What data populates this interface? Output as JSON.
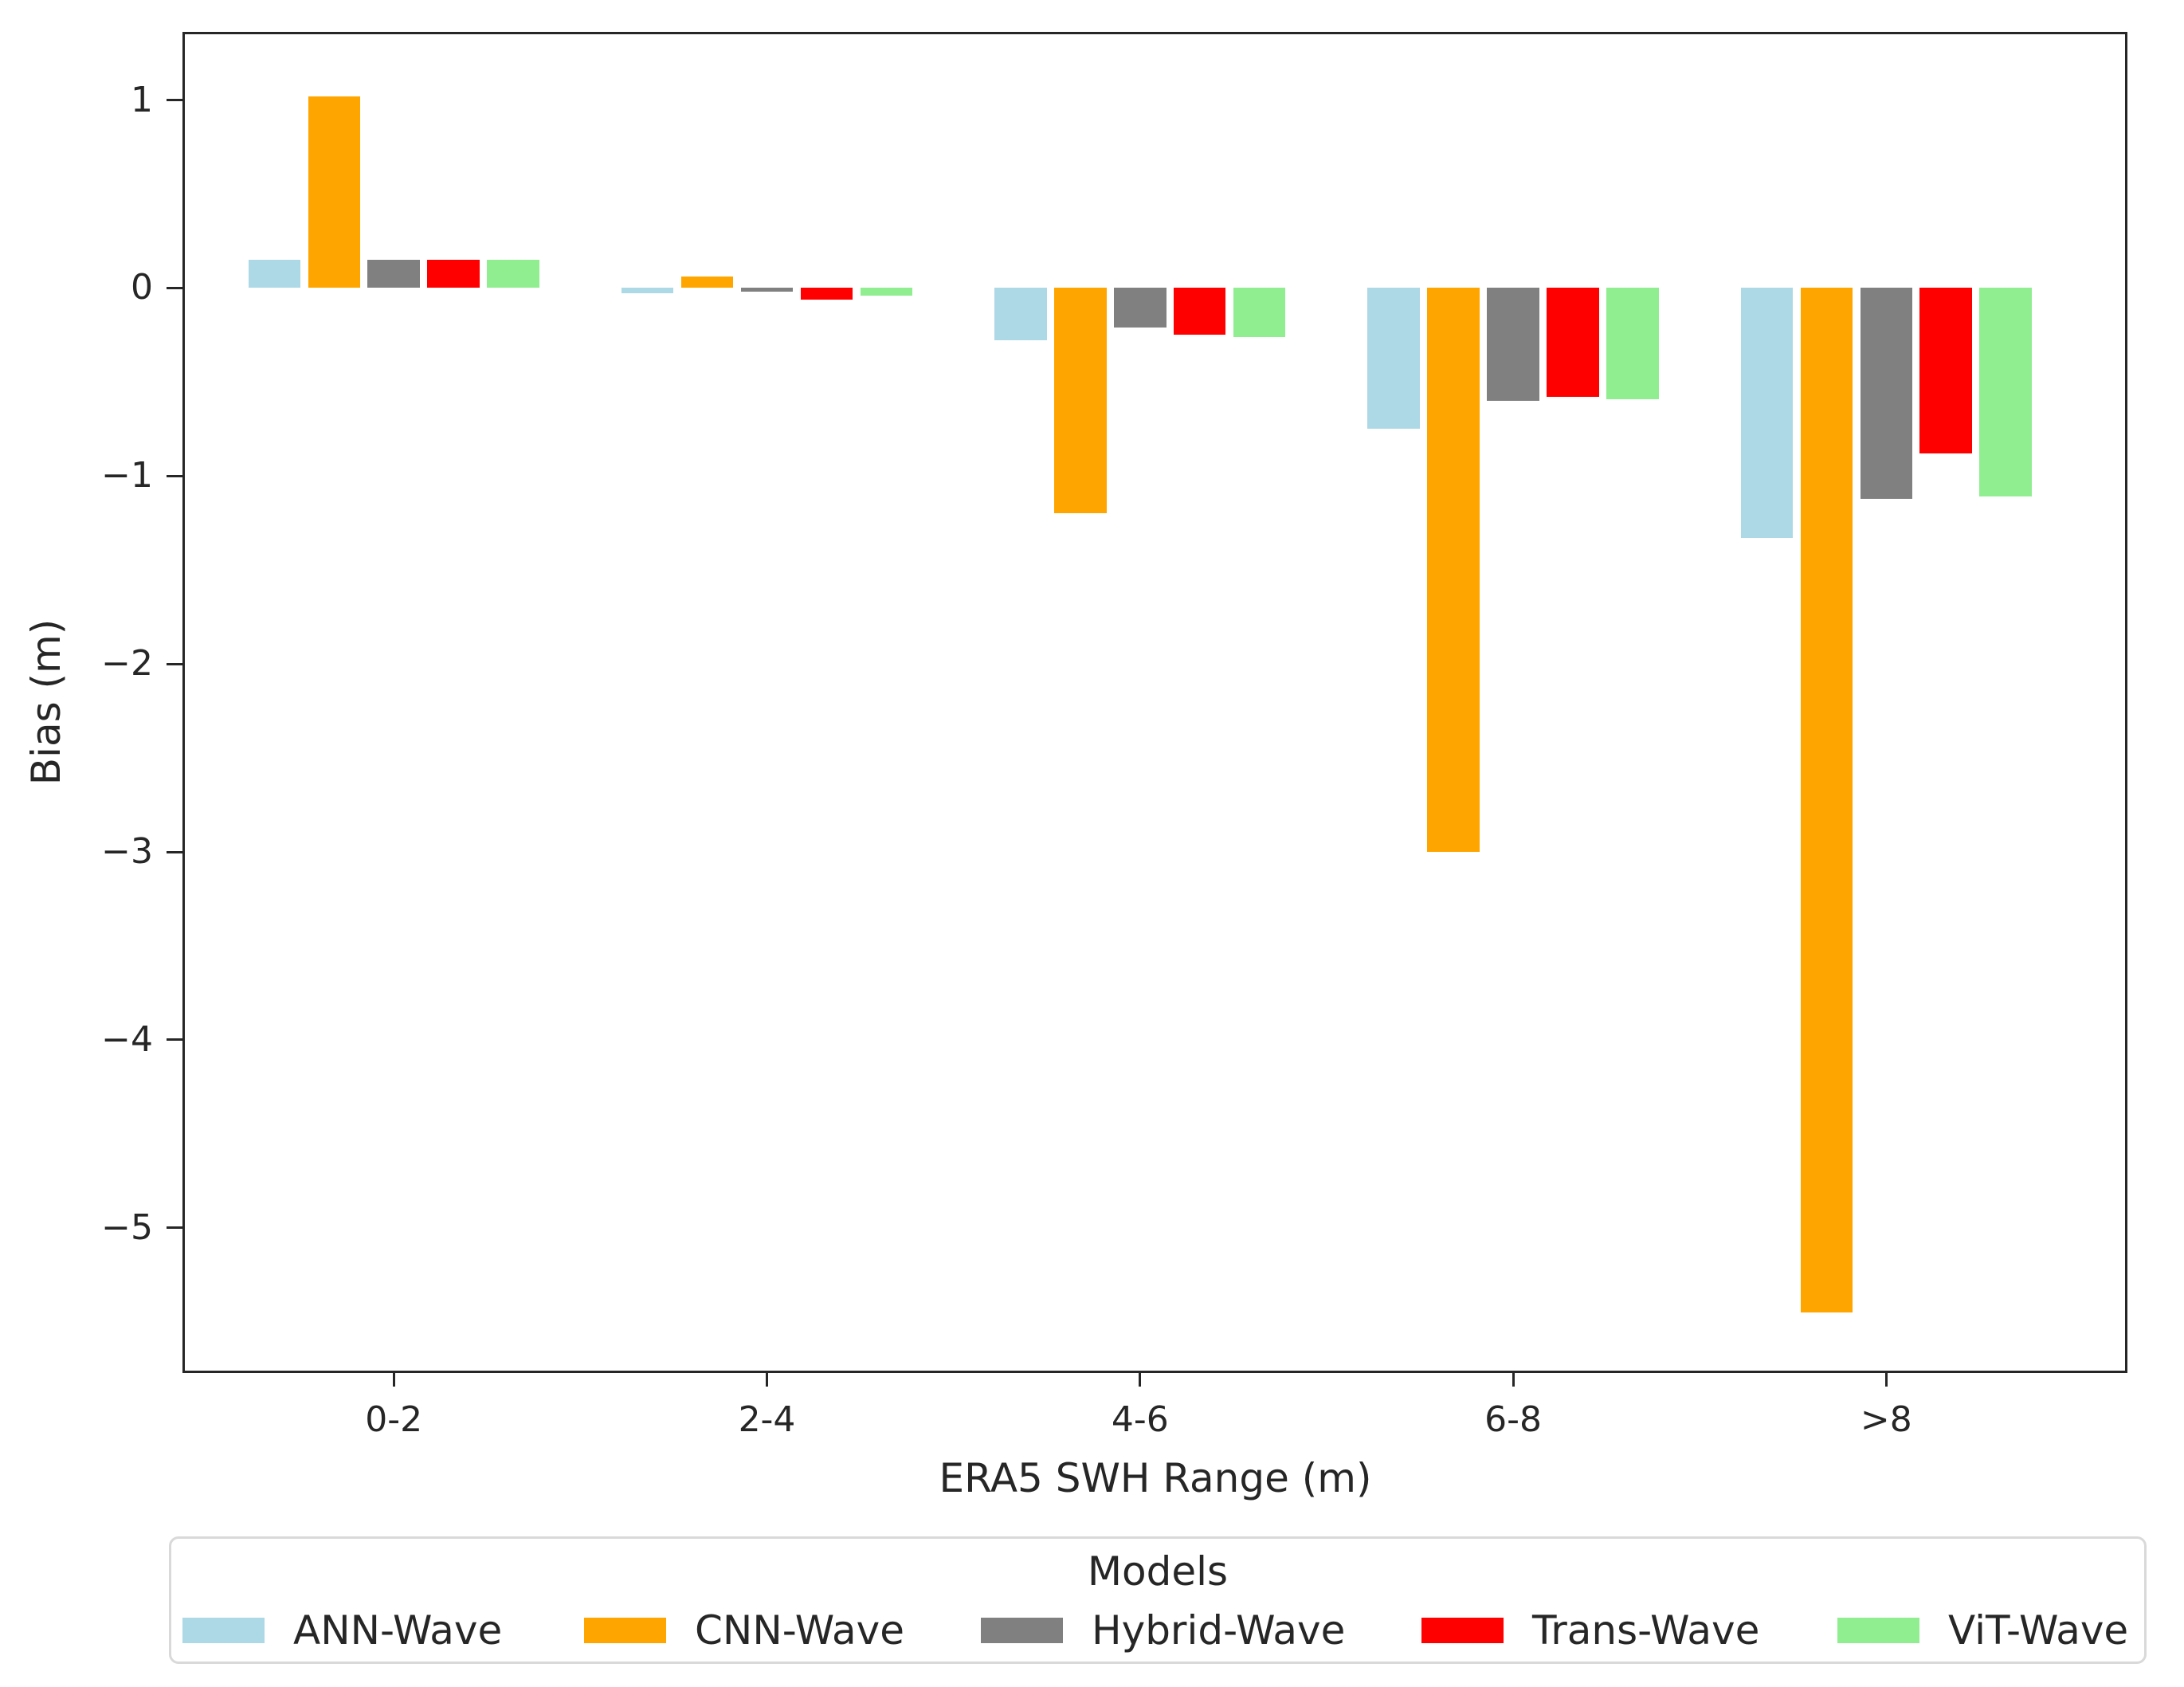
{
  "figure": {
    "background": "#ffffff",
    "axis_color": "#262626",
    "legend_border_color": "#d9d9d9"
  },
  "chart_data": {
    "type": "bar",
    "title": "",
    "xlabel": "ERA5 SWH Range (m)",
    "ylabel": "Bias (m)",
    "categories": [
      "0-2",
      "2-4",
      "4-6",
      "6-8",
      ">8"
    ],
    "series": [
      {
        "name": "ANN-Wave",
        "color": "#add8e6",
        "values": [
          0.15,
          -0.03,
          -0.28,
          -0.75,
          -1.33
        ]
      },
      {
        "name": "CNN-Wave",
        "color": "#ffa500",
        "values": [
          1.02,
          0.06,
          -1.2,
          -3.0,
          -5.45
        ]
      },
      {
        "name": "Hybrid-Wave",
        "color": "#808080",
        "values": [
          0.15,
          -0.02,
          -0.21,
          -0.6,
          -1.12
        ]
      },
      {
        "name": "Trans-Wave",
        "color": "#ff0000",
        "values": [
          0.15,
          -0.06,
          -0.25,
          -0.58,
          -0.88
        ]
      },
      {
        "name": "ViT-Wave",
        "color": "#90ee90",
        "values": [
          0.15,
          -0.04,
          -0.26,
          -0.59,
          -1.11
        ]
      }
    ],
    "yticks": [
      {
        "label": "1",
        "value": 1
      },
      {
        "label": "0",
        "value": 0
      },
      {
        "label": "−1",
        "value": -1
      },
      {
        "label": "−2",
        "value": -2
      },
      {
        "label": "−3",
        "value": -3
      },
      {
        "label": "−4",
        "value": -4
      },
      {
        "label": "−5",
        "value": -5
      }
    ],
    "ylim": [
      -5.76,
      1.35
    ],
    "grid": false,
    "legend": {
      "title": "Models",
      "position": "bottom"
    }
  }
}
